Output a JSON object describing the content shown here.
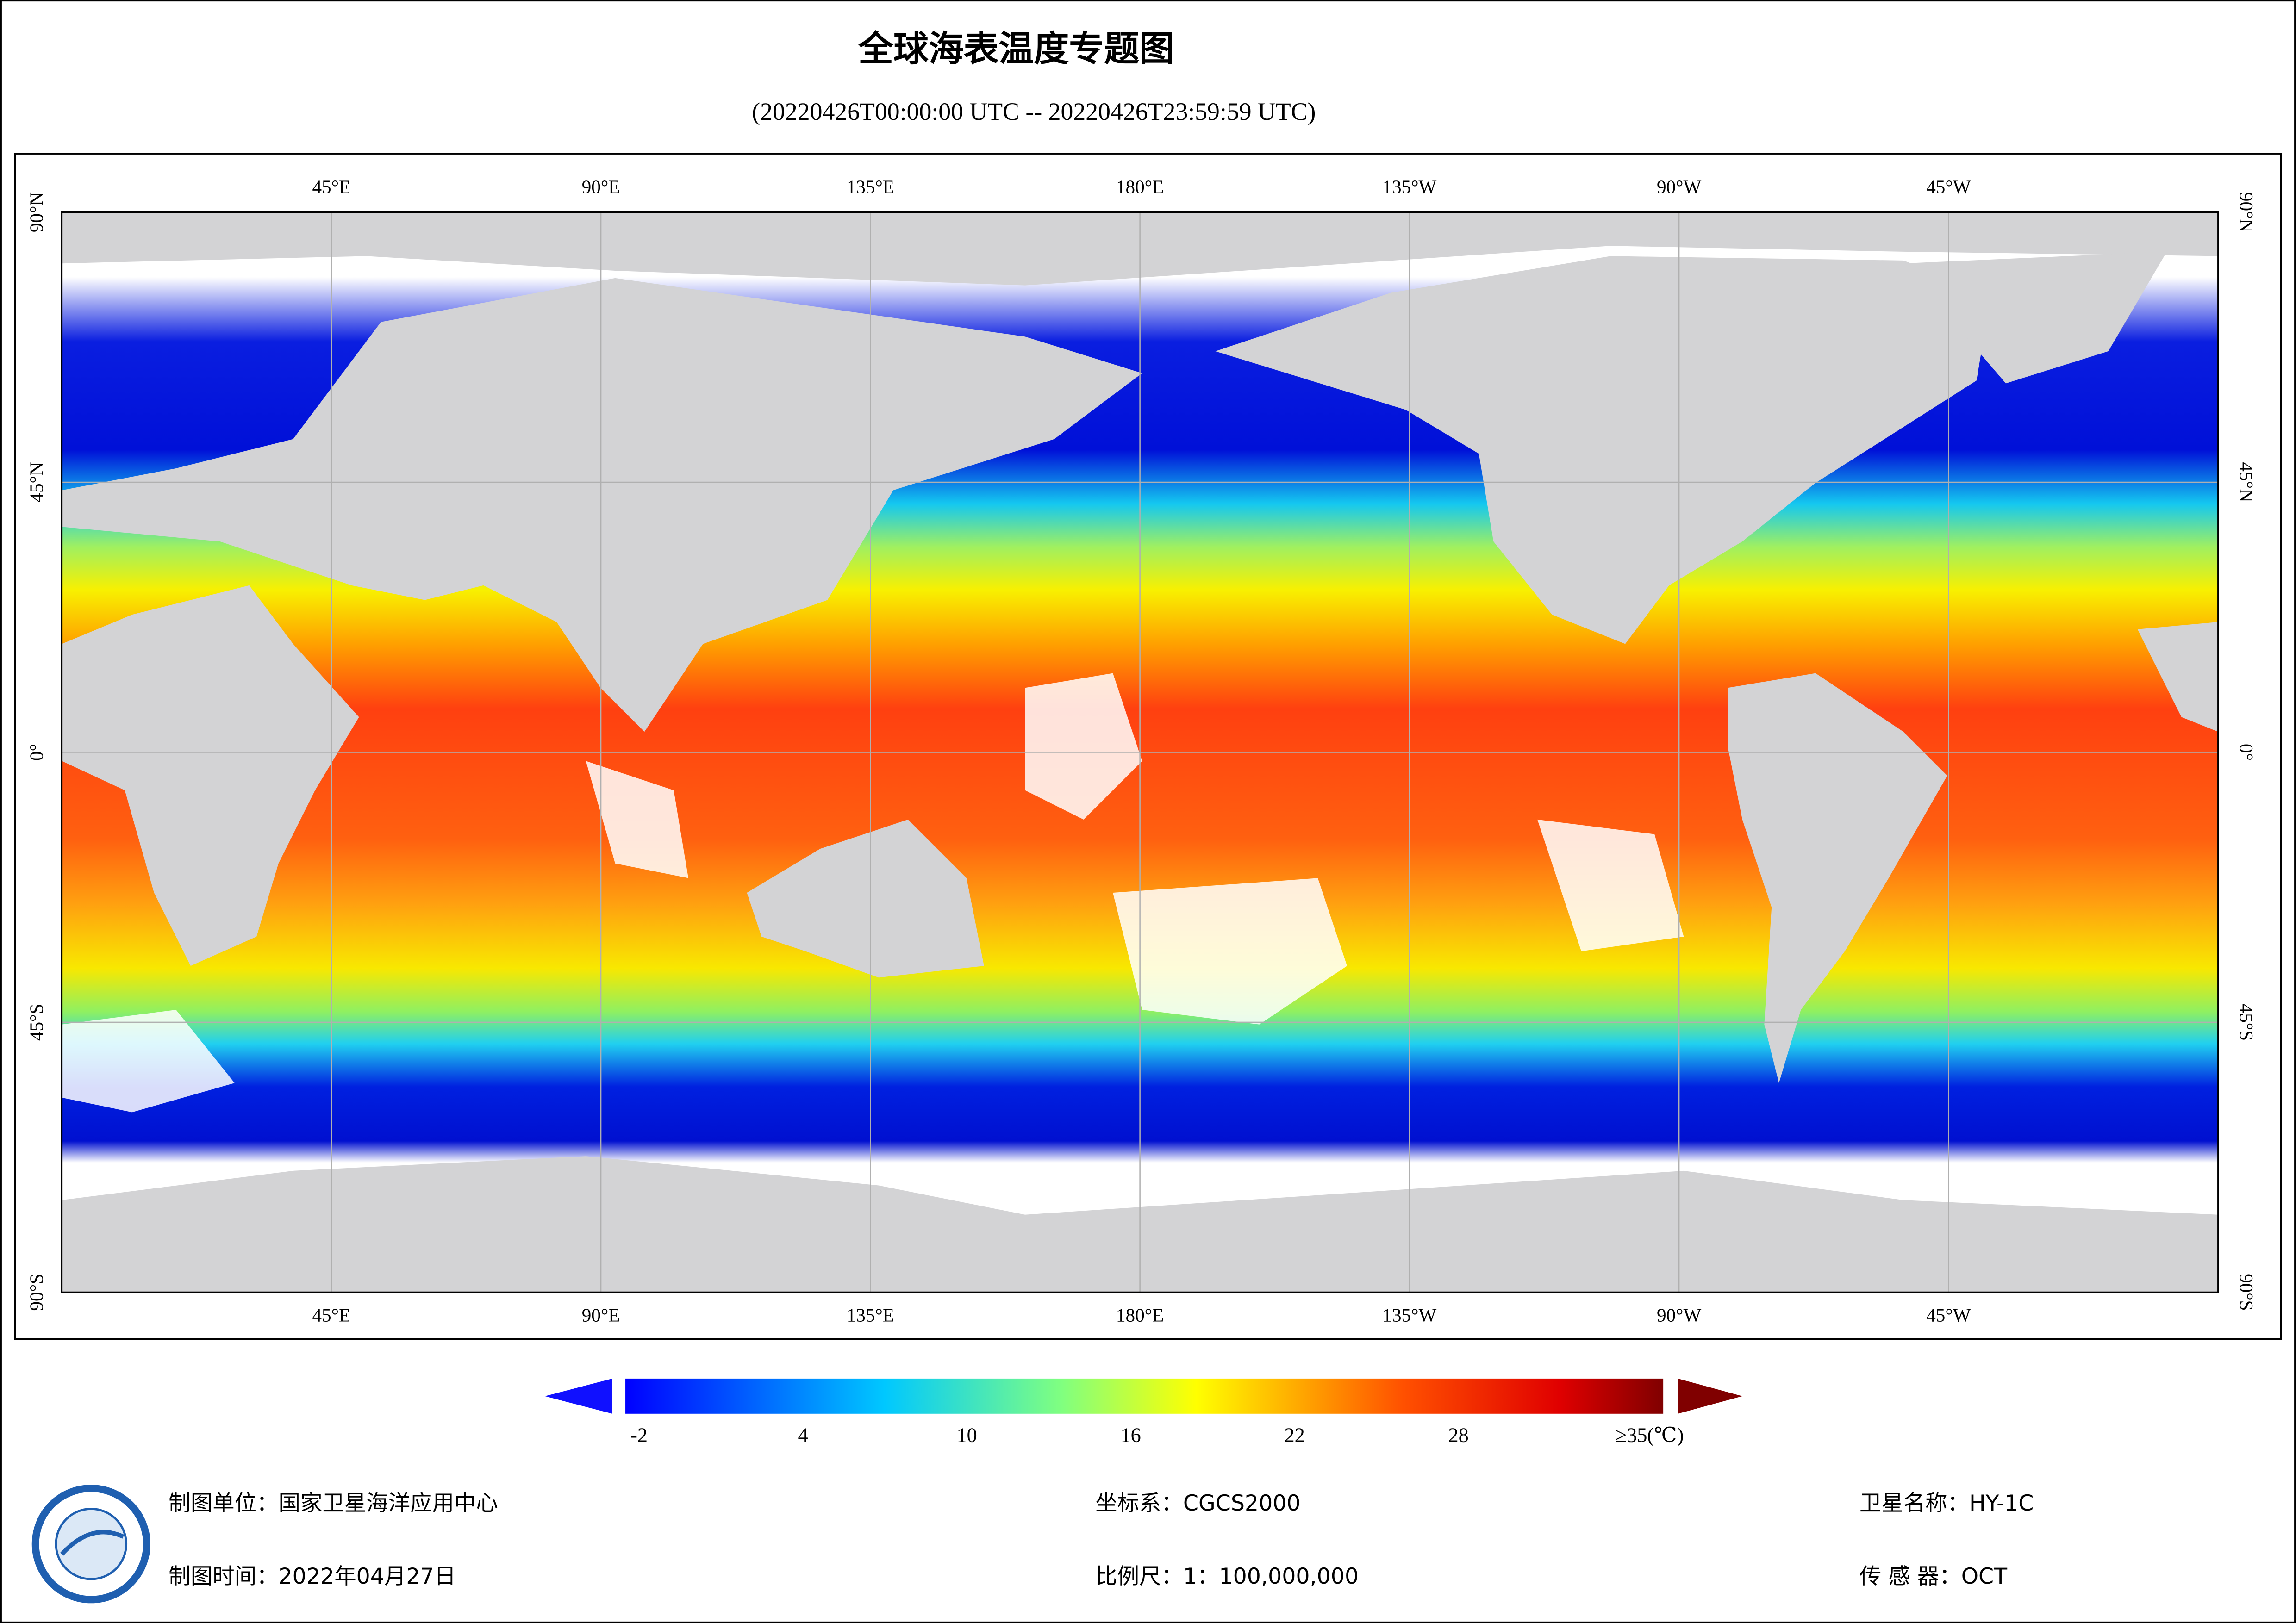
{
  "header": {
    "title": "全球海表温度专题图",
    "subtitle": "(20220426T00:00:00 UTC -- 20220426T23:59:59 UTC)"
  },
  "map": {
    "lon_labels": [
      "45°E",
      "90°E",
      "135°E",
      "180°E",
      "135°W",
      "90°W",
      "45°W"
    ],
    "lat_labels": [
      "90°N",
      "45°N",
      "0°",
      "45°S",
      "90°S"
    ]
  },
  "colorbar": {
    "range": [
      -2.5,
      35.5
    ],
    "ticks": [
      -2,
      4,
      10,
      16,
      22,
      28,
      {
        "value": 35,
        "label": "≥35(℃)"
      }
    ]
  },
  "footer": {
    "unit": "制图单位：国家卫星海洋应用中心",
    "date": "制图时间：2022年04月27日",
    "crs": "坐标系：CGCS2000",
    "scale": "比例尺：1：100,000,000",
    "satellite": "卫星名称：HY-1C",
    "sensor": "传 感 器：OCT"
  }
}
